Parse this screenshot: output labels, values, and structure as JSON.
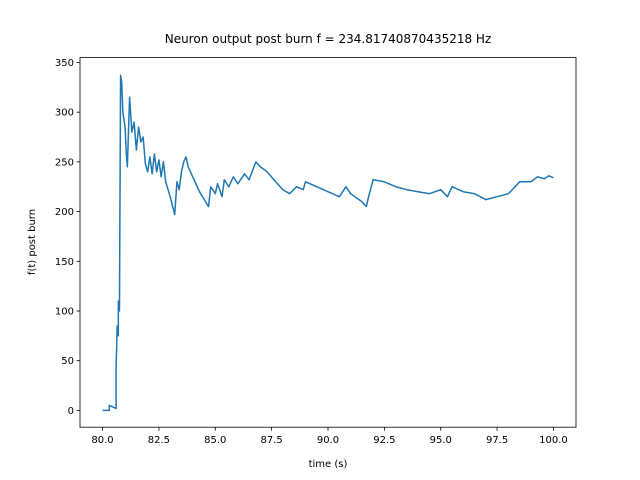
{
  "chart_data": {
    "type": "line",
    "title": "Neuron output post burn f = 234.81740870435218 Hz",
    "x_label": "time (s)",
    "y_label": "f(t) post burn",
    "xlim": [
      79,
      101
    ],
    "ylim": [
      -16.9,
      354.9
    ],
    "xticks": [
      {
        "value": 80,
        "label": "80.0"
      },
      82.5,
      {
        "value": 85,
        "label": "85.0"
      },
      87.5,
      {
        "value": 90,
        "label": "90.0"
      },
      92.5,
      {
        "value": 95,
        "label": "95.0"
      },
      97.5,
      {
        "value": 100,
        "label": "100.0"
      }
    ],
    "yticks": [
      0,
      50,
      100,
      150,
      200,
      250,
      300,
      350
    ],
    "series": [
      {
        "color": "#1f77b4",
        "x": [
          80.0,
          80.3,
          80.3,
          80.5,
          80.6,
          80.6,
          80.65,
          80.7,
          80.7,
          80.75,
          80.8,
          80.85,
          80.9,
          81.0,
          81.05,
          81.1,
          81.2,
          81.3,
          81.4,
          81.5,
          81.6,
          81.7,
          81.8,
          81.9,
          82.0,
          82.1,
          82.2,
          82.3,
          82.4,
          82.5,
          82.6,
          82.7,
          82.8,
          83.0,
          83.2,
          83.3,
          83.4,
          83.5,
          83.6,
          83.7,
          83.8,
          84.0,
          84.3,
          84.7,
          84.8,
          85.0,
          85.1,
          85.3,
          85.4,
          85.6,
          85.8,
          86.0,
          86.3,
          86.5,
          86.8,
          87.0,
          87.3,
          87.6,
          88.0,
          88.3,
          88.6,
          88.9,
          89.0,
          89.5,
          90.0,
          90.5,
          90.8,
          91.0,
          91.5,
          91.7,
          91.8,
          92.0,
          92.5,
          93.0,
          93.5,
          94.0,
          94.5,
          95.0,
          95.3,
          95.5,
          96.0,
          96.5,
          97.0,
          97.5,
          98.0,
          98.3,
          98.5,
          99.0,
          99.3,
          99.6,
          99.8,
          100.0
        ],
        "values": [
          0,
          0,
          5,
          3,
          2,
          42,
          85,
          75,
          110,
          100,
          337,
          330,
          300,
          285,
          260,
          245,
          315,
          280,
          290,
          262,
          285,
          270,
          275,
          248,
          240,
          255,
          238,
          258,
          240,
          252,
          235,
          250,
          230,
          215,
          197,
          230,
          222,
          240,
          250,
          255,
          245,
          235,
          220,
          205,
          225,
          218,
          228,
          215,
          232,
          225,
          235,
          228,
          238,
          232,
          250,
          245,
          240,
          232,
          222,
          218,
          225,
          222,
          230,
          225,
          220,
          215,
          225,
          218,
          210,
          205,
          215,
          232,
          230,
          225,
          222,
          220,
          218,
          222,
          215,
          225,
          220,
          218,
          212,
          215,
          218,
          225,
          230,
          230,
          235,
          233,
          236,
          234
        ]
      }
    ]
  }
}
